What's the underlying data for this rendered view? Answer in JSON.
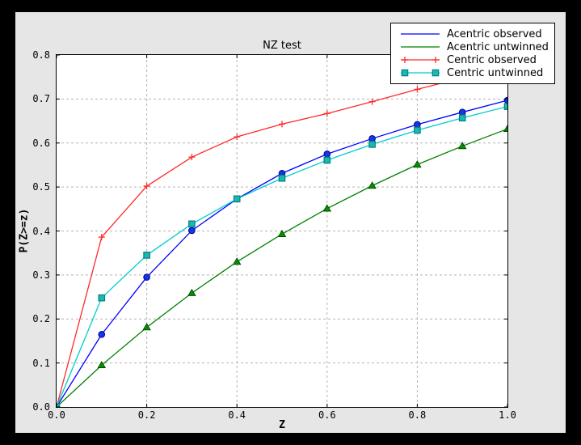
{
  "colors": {
    "frame": "#000000",
    "figure_bg": "#e6e6e6",
    "plot_bg": "#ffffff",
    "grid": "#b3b3b3",
    "axis": "#000000",
    "legend_bg": "#ffffff",
    "legend_border": "#000000"
  },
  "chart_data": {
    "type": "line",
    "title": "NZ test",
    "xlabel": "Z",
    "ylabel": "P(Z>=z)",
    "xlim": [
      0.0,
      1.0
    ],
    "ylim": [
      0.0,
      0.8
    ],
    "grid": true,
    "legend_position": "upper right",
    "x_tick_values": [
      0.0,
      0.2,
      0.4,
      0.6,
      0.8,
      1.0
    ],
    "x_tick_labels": [
      "0.0",
      "0.2",
      "0.4",
      "0.6",
      "0.8",
      "1.0"
    ],
    "y_tick_values": [
      0.0,
      0.1,
      0.2,
      0.3,
      0.4,
      0.5,
      0.6,
      0.7,
      0.8
    ],
    "y_tick_labels": [
      "0.0",
      "0.1",
      "0.2",
      "0.3",
      "0.4",
      "0.5",
      "0.6",
      "0.7",
      "0.8"
    ],
    "x": [
      0.0,
      0.1,
      0.2,
      0.3,
      0.4,
      0.5,
      0.6,
      0.7,
      0.8,
      0.9,
      1.0
    ],
    "series": [
      {
        "name": "Acentric observed",
        "color": "#0000ff",
        "marker": "circle",
        "marker_fill": "#1536e0",
        "marker_edge": "#0000a0",
        "legend_markers": false,
        "values": [
          0.0,
          0.165,
          0.295,
          0.401,
          0.473,
          0.531,
          0.575,
          0.61,
          0.642,
          0.67,
          0.697
        ]
      },
      {
        "name": "Acentric untwinned",
        "color": "#008000",
        "marker": "triangle",
        "marker_fill": "#089000",
        "marker_edge": "#004d00",
        "legend_markers": false,
        "values": [
          0.0,
          0.095,
          0.181,
          0.259,
          0.33,
          0.393,
          0.451,
          0.503,
          0.551,
          0.593,
          0.632
        ]
      },
      {
        "name": "Centric observed",
        "color": "#ff2a2a",
        "marker": "plus",
        "marker_fill": "#ff2a2a",
        "marker_edge": "#ff2a2a",
        "legend_markers": true,
        "values": [
          0.0,
          0.386,
          0.502,
          0.568,
          0.614,
          0.643,
          0.667,
          0.694,
          0.722,
          0.748,
          0.772
        ]
      },
      {
        "name": "Centric untwinned",
        "color": "#00cccc",
        "marker": "square",
        "marker_fill": "#1ab8b2",
        "marker_edge": "#008080",
        "legend_markers": true,
        "values": [
          0.0,
          0.248,
          0.345,
          0.416,
          0.473,
          0.52,
          0.561,
          0.597,
          0.629,
          0.657,
          0.683
        ]
      }
    ]
  }
}
